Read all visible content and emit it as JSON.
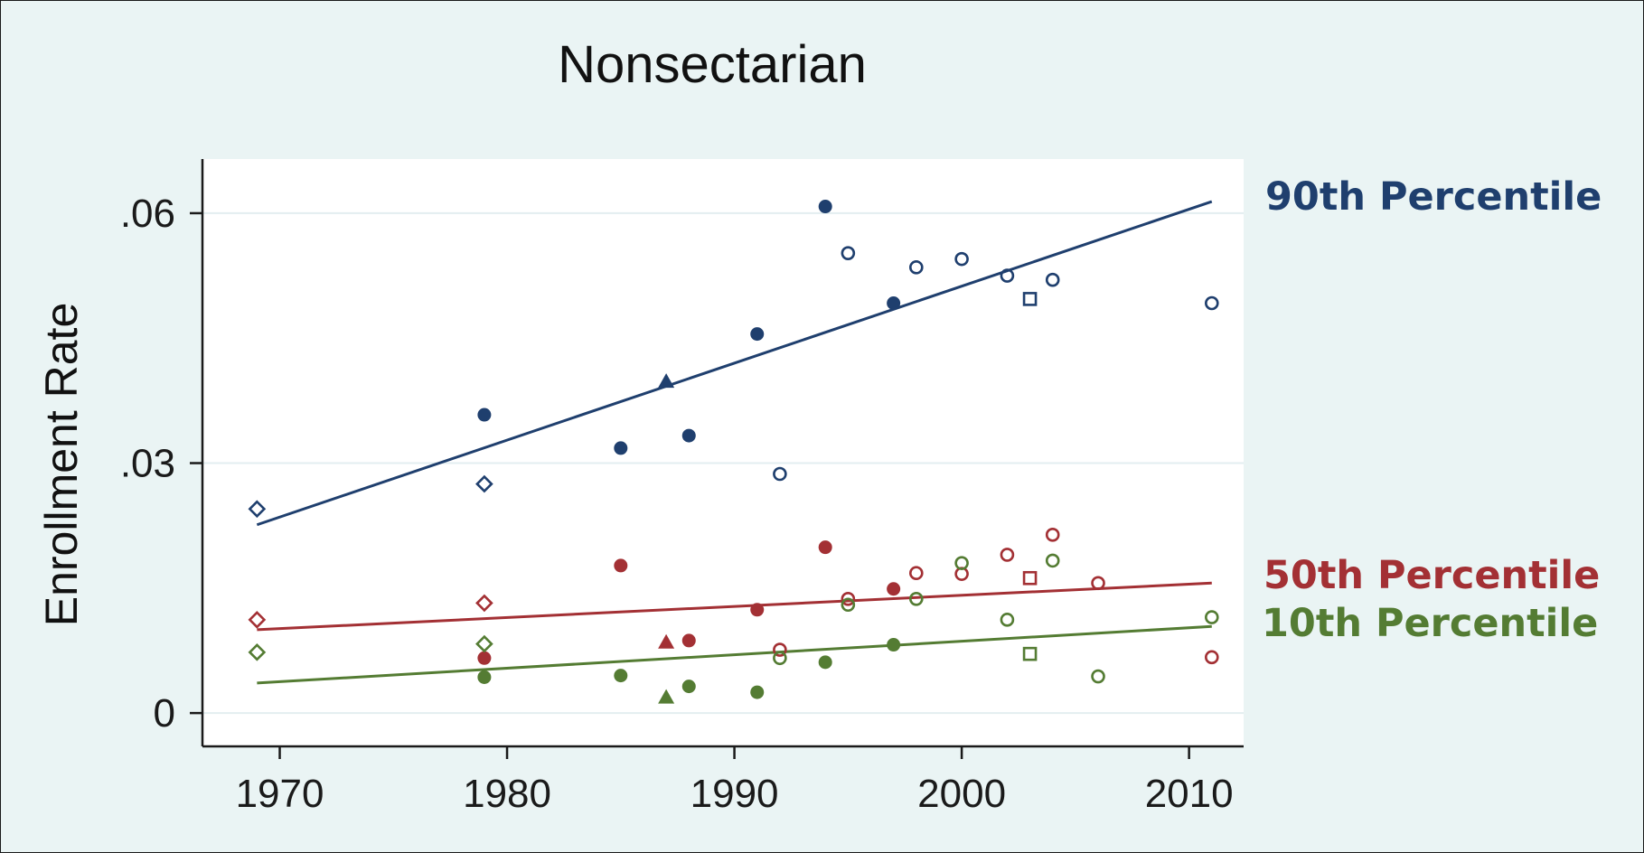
{
  "colors": {
    "background": "#eaf4f4",
    "plot_area": "#ffffff",
    "gridline": "#e3eef0",
    "p90": "#1f3f6e",
    "p50": "#a33034",
    "p10": "#547c33"
  },
  "chart_data": {
    "type": "scatter",
    "title": "Nonsectarian",
    "xlabel": "",
    "ylabel": "Enrollment Rate",
    "xlim": [
      1966.6,
      2012.4
    ],
    "ylim": [
      -0.004,
      0.0665
    ],
    "x_ticks": [
      1970,
      1980,
      1990,
      2000,
      2010
    ],
    "x_tick_labels": [
      "1970",
      "1980",
      "1990",
      "2000",
      "2010"
    ],
    "y_ticks": [
      0,
      0.03,
      0.06
    ],
    "y_tick_labels": [
      "0",
      ".03",
      ".06"
    ],
    "grid": true,
    "legend": "right-edge labels",
    "series": [
      {
        "name": "90th Percentile",
        "color": "#1f3f6e",
        "fit_line": {
          "x": [
            1969,
            2011
          ],
          "y": [
            0.0226,
            0.0614
          ]
        },
        "points": [
          {
            "x": 1969,
            "y": 0.0245,
            "marker": "diamond-hollow"
          },
          {
            "x": 1979,
            "y": 0.0358,
            "marker": "circle-filled"
          },
          {
            "x": 1979,
            "y": 0.0275,
            "marker": "diamond-hollow"
          },
          {
            "x": 1985,
            "y": 0.0318,
            "marker": "circle-filled"
          },
          {
            "x": 1987,
            "y": 0.0398,
            "marker": "triangle-filled"
          },
          {
            "x": 1988,
            "y": 0.0333,
            "marker": "circle-filled"
          },
          {
            "x": 1991,
            "y": 0.0455,
            "marker": "circle-filled"
          },
          {
            "x": 1992,
            "y": 0.0287,
            "marker": "circle-hollow"
          },
          {
            "x": 1994,
            "y": 0.0608,
            "marker": "circle-filled"
          },
          {
            "x": 1995,
            "y": 0.0552,
            "marker": "circle-hollow"
          },
          {
            "x": 1997,
            "y": 0.0492,
            "marker": "circle-filled"
          },
          {
            "x": 1998,
            "y": 0.0535,
            "marker": "circle-hollow"
          },
          {
            "x": 2000,
            "y": 0.0545,
            "marker": "circle-hollow"
          },
          {
            "x": 2002,
            "y": 0.0525,
            "marker": "circle-hollow"
          },
          {
            "x": 2003,
            "y": 0.0497,
            "marker": "square-hollow"
          },
          {
            "x": 2004,
            "y": 0.052,
            "marker": "circle-hollow"
          },
          {
            "x": 2011,
            "y": 0.0492,
            "marker": "circle-hollow"
          }
        ]
      },
      {
        "name": "50th Percentile",
        "color": "#a33034",
        "fit_line": {
          "x": [
            1969,
            2011
          ],
          "y": [
            0.01,
            0.0156
          ]
        },
        "points": [
          {
            "x": 1969,
            "y": 0.0112,
            "marker": "diamond-hollow"
          },
          {
            "x": 1979,
            "y": 0.0132,
            "marker": "diamond-hollow"
          },
          {
            "x": 1979,
            "y": 0.0066,
            "marker": "circle-filled"
          },
          {
            "x": 1985,
            "y": 0.0177,
            "marker": "circle-filled"
          },
          {
            "x": 1987,
            "y": 0.0085,
            "marker": "triangle-filled"
          },
          {
            "x": 1988,
            "y": 0.0087,
            "marker": "circle-filled"
          },
          {
            "x": 1991,
            "y": 0.0124,
            "marker": "circle-filled"
          },
          {
            "x": 1992,
            "y": 0.0076,
            "marker": "circle-hollow"
          },
          {
            "x": 1994,
            "y": 0.0199,
            "marker": "circle-filled"
          },
          {
            "x": 1995,
            "y": 0.0137,
            "marker": "circle-hollow"
          },
          {
            "x": 1997,
            "y": 0.0149,
            "marker": "circle-filled"
          },
          {
            "x": 1998,
            "y": 0.0168,
            "marker": "circle-hollow"
          },
          {
            "x": 2000,
            "y": 0.0167,
            "marker": "circle-hollow"
          },
          {
            "x": 2002,
            "y": 0.019,
            "marker": "circle-hollow"
          },
          {
            "x": 2003,
            "y": 0.0162,
            "marker": "square-hollow"
          },
          {
            "x": 2004,
            "y": 0.0214,
            "marker": "circle-hollow"
          },
          {
            "x": 2006,
            "y": 0.0156,
            "marker": "circle-hollow"
          },
          {
            "x": 2011,
            "y": 0.0067,
            "marker": "circle-hollow"
          }
        ]
      },
      {
        "name": "10th Percentile",
        "color": "#547c33",
        "fit_line": {
          "x": [
            1969,
            2011
          ],
          "y": [
            0.0036,
            0.0104
          ]
        },
        "points": [
          {
            "x": 1969,
            "y": 0.0073,
            "marker": "diamond-hollow"
          },
          {
            "x": 1979,
            "y": 0.0083,
            "marker": "diamond-hollow"
          },
          {
            "x": 1979,
            "y": 0.0043,
            "marker": "circle-filled"
          },
          {
            "x": 1985,
            "y": 0.0045,
            "marker": "circle-filled"
          },
          {
            "x": 1987,
            "y": 0.0019,
            "marker": "triangle-filled"
          },
          {
            "x": 1988,
            "y": 0.0032,
            "marker": "circle-filled"
          },
          {
            "x": 1991,
            "y": 0.0025,
            "marker": "circle-filled"
          },
          {
            "x": 1992,
            "y": 0.0066,
            "marker": "circle-hollow"
          },
          {
            "x": 1994,
            "y": 0.0061,
            "marker": "circle-filled"
          },
          {
            "x": 1995,
            "y": 0.013,
            "marker": "circle-hollow"
          },
          {
            "x": 1997,
            "y": 0.0082,
            "marker": "circle-filled"
          },
          {
            "x": 1998,
            "y": 0.0137,
            "marker": "circle-hollow"
          },
          {
            "x": 2000,
            "y": 0.018,
            "marker": "circle-hollow"
          },
          {
            "x": 2002,
            "y": 0.0112,
            "marker": "circle-hollow"
          },
          {
            "x": 2003,
            "y": 0.0071,
            "marker": "square-hollow"
          },
          {
            "x": 2004,
            "y": 0.0183,
            "marker": "circle-hollow"
          },
          {
            "x": 2006,
            "y": 0.0044,
            "marker": "circle-hollow"
          },
          {
            "x": 2011,
            "y": 0.0115,
            "marker": "circle-hollow"
          }
        ]
      }
    ]
  }
}
